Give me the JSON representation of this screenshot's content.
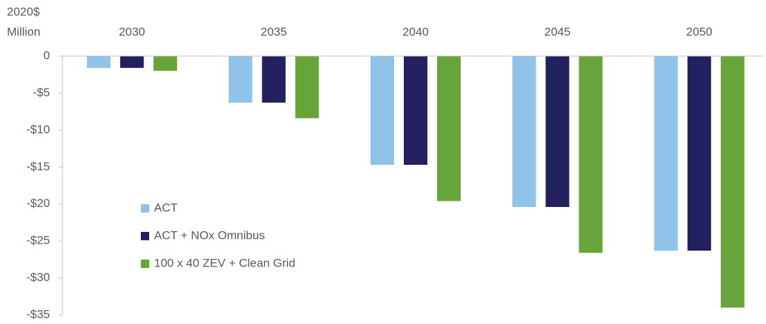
{
  "chart_data": {
    "type": "bar",
    "ylabel": [
      "2020$",
      "Million"
    ],
    "categories": [
      "2030",
      "2035",
      "2040",
      "2045",
      "2050"
    ],
    "series": [
      {
        "name": "ACT",
        "color": "#8fc3ea",
        "values": [
          -1.6,
          -6.3,
          -14.7,
          -20.4,
          -26.3
        ]
      },
      {
        "name": "ACT + NOx Omnibus",
        "color": "#22205f",
        "values": [
          -1.6,
          -6.3,
          -14.7,
          -20.4,
          -26.3
        ]
      },
      {
        "name": "100 x 40 ZEV + Clean Grid",
        "color": "#67a53b",
        "values": [
          -2.0,
          -8.4,
          -19.6,
          -26.6,
          -34.0
        ]
      }
    ],
    "ylim": [
      -35,
      0
    ],
    "yticks": [
      0,
      {
        "value": -5,
        "label": "-$5"
      },
      {
        "value": -10,
        "label": "-$10"
      },
      {
        "value": -15,
        "label": "-$15"
      },
      {
        "value": -20,
        "label": "-$20"
      },
      {
        "value": -25,
        "label": "-$25"
      },
      {
        "value": -30,
        "label": "-$30"
      },
      {
        "value": -35,
        "label": "-$35"
      }
    ],
    "legend": "lower-left"
  }
}
